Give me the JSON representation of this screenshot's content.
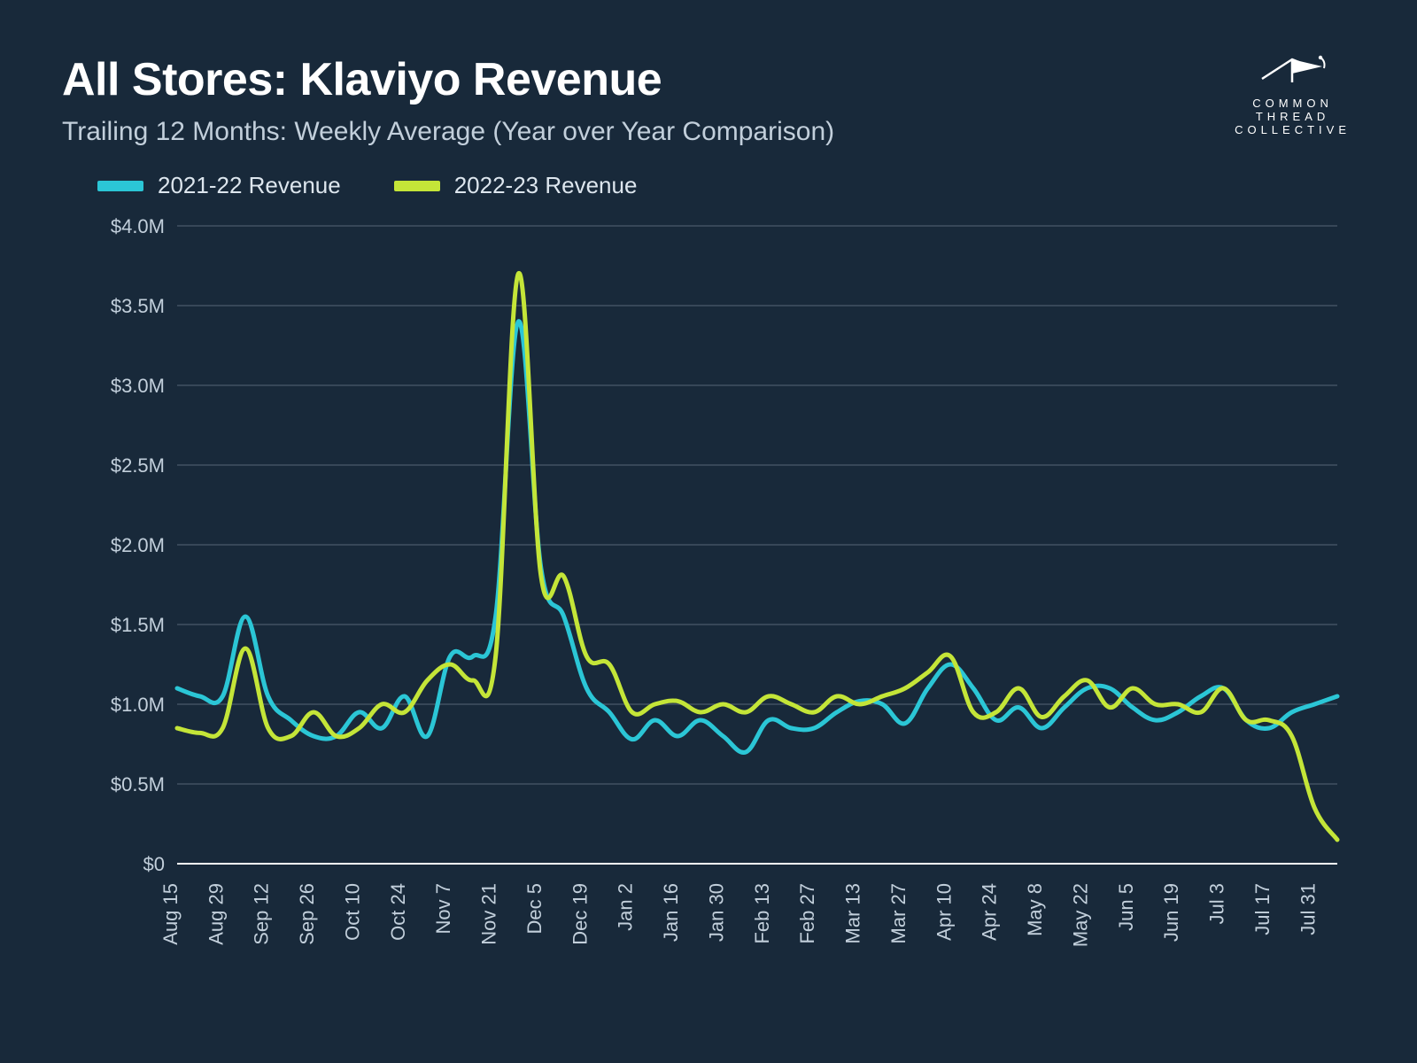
{
  "title": "All Stores: Klaviyo Revenue",
  "subtitle": "Trailing 12 Months: Weekly Average (Year over Year Comparison)",
  "logo": {
    "line1": "COMMON",
    "line2": "THREAD",
    "line3": "COLLECTIVE"
  },
  "legend": {
    "series_a": {
      "label": "2021-22 Revenue",
      "color": "#2bc6d6"
    },
    "series_b": {
      "label": "2022-23 Revenue",
      "color": "#c4e538"
    }
  },
  "chart": {
    "type": "line",
    "background_color": "#18293a",
    "grid_color": "#4a5a6a",
    "text_color": "#c2cfdb",
    "line_width": 5,
    "y": {
      "min": 0,
      "max": 4.0,
      "ticks": [
        0,
        0.5,
        1.0,
        1.5,
        2.0,
        2.5,
        3.0,
        3.5,
        4.0
      ],
      "labels": [
        "$0",
        "$0.5M",
        "$1.0M",
        "$1.5M",
        "$2.0M",
        "$2.5M",
        "$3.0M",
        "$3.5M",
        "$4.0M"
      ],
      "unit": "USD millions"
    },
    "x": {
      "labels": [
        "Aug 15",
        "Aug 29",
        "Sep 12",
        "Sep 26",
        "Oct 10",
        "Oct 24",
        "Nov 7",
        "Nov 21",
        "Dec 5",
        "Dec 19",
        "Jan 2",
        "Jan 16",
        "Jan 30",
        "Feb 13",
        "Feb 27",
        "Mar 13",
        "Mar 27",
        "Apr 10",
        "Apr 24",
        "May 8",
        "May 22",
        "Jun 5",
        "Jun 19",
        "Jul 3",
        "Jul 17",
        "Jul 31"
      ],
      "weeks": 52
    },
    "series": {
      "a": {
        "name": "2021-22 Revenue",
        "color": "#2bc6d6",
        "values": [
          1.1,
          1.05,
          1.05,
          1.55,
          1.05,
          0.9,
          0.8,
          0.8,
          0.95,
          0.85,
          1.05,
          0.8,
          1.3,
          1.3,
          1.55,
          3.4,
          1.85,
          1.55,
          1.1,
          0.95,
          0.78,
          0.9,
          0.8,
          0.9,
          0.8,
          0.7,
          0.9,
          0.85,
          0.85,
          0.95,
          1.02,
          1.0,
          0.88,
          1.1,
          1.25,
          1.1,
          0.9,
          0.98,
          0.85,
          0.98,
          1.1,
          1.1,
          0.98,
          0.9,
          0.95,
          1.05,
          1.1,
          0.9,
          0.85,
          0.95,
          1.0,
          1.05
        ]
      },
      "b": {
        "name": "2022-23 Revenue",
        "color": "#c4e538",
        "values": [
          0.85,
          0.82,
          0.85,
          1.35,
          0.85,
          0.8,
          0.95,
          0.8,
          0.85,
          1.0,
          0.95,
          1.15,
          1.25,
          1.15,
          1.3,
          3.7,
          1.8,
          1.8,
          1.3,
          1.25,
          0.95,
          1.0,
          1.02,
          0.95,
          1.0,
          0.95,
          1.05,
          1.0,
          0.95,
          1.05,
          1.0,
          1.05,
          1.1,
          1.2,
          1.3,
          0.95,
          0.95,
          1.1,
          0.92,
          1.05,
          1.15,
          0.98,
          1.1,
          1.0,
          1.0,
          0.95,
          1.1,
          0.9,
          0.9,
          0.8,
          0.35,
          0.15
        ]
      }
    }
  }
}
